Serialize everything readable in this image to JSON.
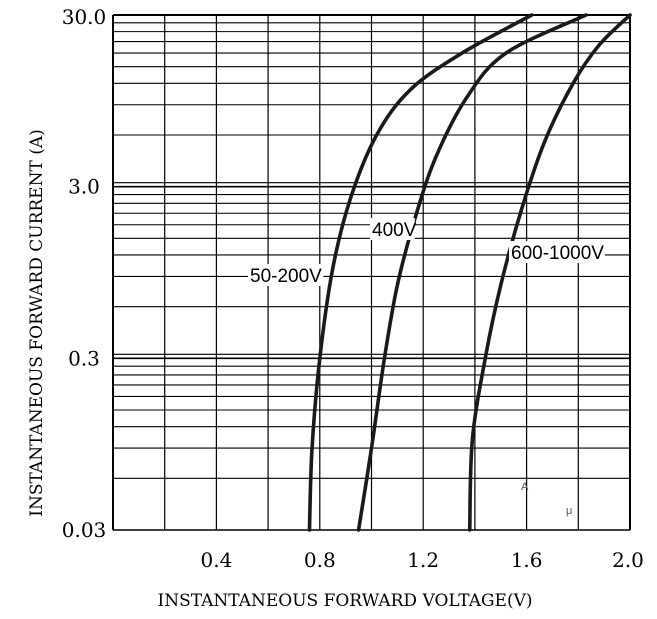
{
  "chart_data": {
    "type": "line",
    "title": "",
    "xlabel": "INSTANTANEOUS FORWARD VOLTAGE(V)",
    "ylabel": "INSTANTANEOUS FORWARD CURRENT (A)",
    "xlim": [
      0,
      2.0
    ],
    "ylim": [
      0.03,
      30.0
    ],
    "y_scale": "log",
    "grid": true,
    "x_ticks": [
      0.4,
      0.8,
      1.2,
      1.6,
      2.0
    ],
    "x_tick_labels": [
      "0.4",
      "0.8",
      "1.2",
      "1.6",
      "2.0"
    ],
    "y_ticks": [
      0.03,
      0.3,
      3.0,
      30.0
    ],
    "y_tick_labels": [
      "0.03",
      "0.3",
      "3.0",
      "30.0"
    ],
    "series": [
      {
        "name": "50-200V",
        "points": [
          [
            0.76,
            0.03
          ],
          [
            0.77,
            0.09
          ],
          [
            0.8,
            0.3
          ],
          [
            0.85,
            1.0
          ],
          [
            0.92,
            2.6
          ],
          [
            1.02,
            6.0
          ],
          [
            1.15,
            11.0
          ],
          [
            1.35,
            18.0
          ],
          [
            1.62,
            30.0
          ]
        ]
      },
      {
        "name": "400V",
        "points": [
          [
            0.95,
            0.03
          ],
          [
            1.0,
            0.09
          ],
          [
            1.05,
            0.3
          ],
          [
            1.1,
            0.8
          ],
          [
            1.17,
            2.0
          ],
          [
            1.25,
            4.5
          ],
          [
            1.37,
            10.0
          ],
          [
            1.52,
            18.0
          ],
          [
            1.83,
            30.0
          ]
        ]
      },
      {
        "name": "600-1000V",
        "points": [
          [
            1.38,
            0.03
          ],
          [
            1.39,
            0.1
          ],
          [
            1.44,
            0.3
          ],
          [
            1.5,
            0.8
          ],
          [
            1.58,
            2.2
          ],
          [
            1.67,
            5.5
          ],
          [
            1.78,
            12.0
          ],
          [
            1.88,
            20.0
          ],
          [
            2.0,
            30.0
          ]
        ]
      }
    ],
    "annotations": [
      "A",
      "μ"
    ]
  }
}
